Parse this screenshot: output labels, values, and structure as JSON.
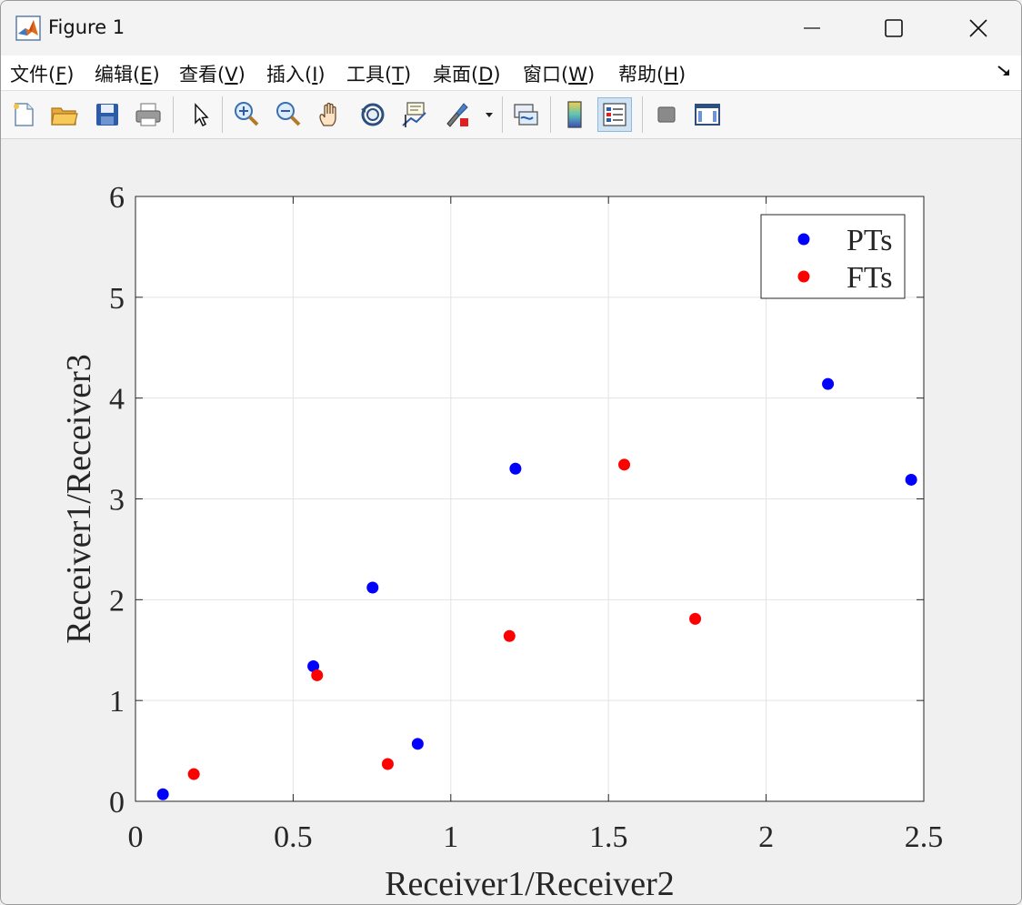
{
  "window": {
    "title": "Figure 1",
    "menu": [
      "文件(F)",
      "编辑(E)",
      "查看(V)",
      "插入(I)",
      "工具(T)",
      "桌面(D)",
      "窗口(W)",
      "帮助(H)"
    ],
    "menu_hotkeys": [
      "F",
      "E",
      "V",
      "I",
      "T",
      "D",
      "W",
      "H"
    ]
  },
  "toolbar": {
    "buttons": [
      "new-figure",
      "open-file",
      "save",
      "print",
      "edit-plot",
      "zoom-in",
      "zoom-out",
      "pan",
      "rotate-3d",
      "data-cursor",
      "brush",
      "link-plot",
      "colorbar",
      "legend",
      "hide-plot-tools",
      "show-plot-tools"
    ],
    "active": "legend"
  },
  "colors": {
    "PTs": "#0000ff",
    "FTs": "#ff0000",
    "grid": "#e3e3e3",
    "axes": "#262626"
  },
  "chart_data": {
    "type": "scatter",
    "xlabel": "Receiver1/Receiver2",
    "ylabel": "Receiver1/Receiver3",
    "xlim": [
      0,
      2.5
    ],
    "ylim": [
      0,
      6
    ],
    "xticks": [
      "0",
      "0.5",
      "1",
      "1.5",
      "2",
      "2.5"
    ],
    "yticks": [
      "0",
      "1",
      "2",
      "3",
      "4",
      "5",
      "6"
    ],
    "xtick_values": [
      0,
      0.5,
      1,
      1.5,
      2,
      2.5
    ],
    "ytick_values": [
      0,
      1,
      2,
      3,
      4,
      5,
      6
    ],
    "grid": true,
    "legend_position": "top-right",
    "series": [
      {
        "name": "PTs",
        "color": "#0000ff",
        "x": [
          0.087,
          0.564,
          0.752,
          0.895,
          1.205,
          2.196,
          2.46
        ],
        "y": [
          0.07,
          1.34,
          2.12,
          0.57,
          3.3,
          4.14,
          3.19
        ]
      },
      {
        "name": "FTs",
        "color": "#ff0000",
        "x": [
          0.185,
          0.576,
          0.8,
          1.186,
          1.55,
          1.775
        ],
        "y": [
          0.27,
          1.25,
          0.37,
          1.64,
          3.34,
          1.81
        ]
      }
    ]
  }
}
